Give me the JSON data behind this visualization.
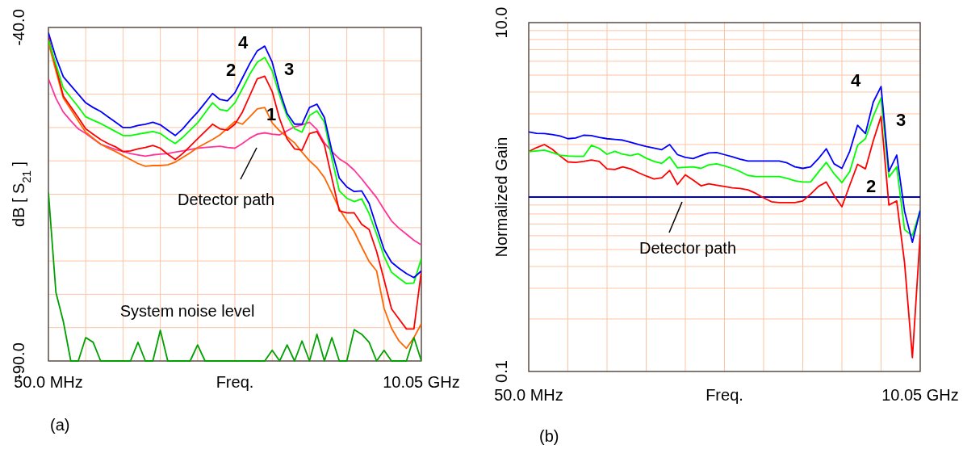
{
  "chart_data": [
    {
      "type": "line",
      "xlabel": "Freq.",
      "ylabel": "dB [ S$_{21}$ ]",
      "ylim": [
        -90,
        -40
      ],
      "grid": true,
      "categories": [
        "50.0 MHz",
        null,
        null,
        null,
        null,
        null,
        null,
        null,
        null,
        null,
        null,
        null,
        null,
        null,
        null,
        null,
        null,
        null,
        null,
        null,
        null,
        null,
        null,
        null,
        null,
        null,
        null,
        null,
        null,
        null,
        null,
        null,
        null,
        null,
        null,
        null,
        null,
        null,
        null,
        null,
        null,
        null,
        null,
        null,
        null,
        null,
        null,
        null,
        null,
        null,
        "10.05 GHz"
      ],
      "yticks": [
        {
          "value": -40,
          "label": "-40.0"
        },
        {
          "value": -45,
          "label": null
        },
        {
          "value": -50,
          "label": null
        },
        {
          "value": -55,
          "label": null
        },
        {
          "value": -60,
          "label": null
        },
        {
          "value": -65,
          "label": null
        },
        {
          "value": -70,
          "label": null
        },
        {
          "value": -75,
          "label": null
        },
        {
          "value": -80,
          "label": null
        },
        {
          "value": -85,
          "label": null
        },
        {
          "value": -90,
          "label": "-90.0"
        }
      ],
      "series": [
        {
          "color": "#ff3399",
          "values": [
            -47.7,
            -50.6,
            -52.7,
            -54.0,
            -55.2,
            -55.9,
            -56.7,
            -57.5,
            -57.9,
            -58.3,
            -58.6,
            -58.9,
            -59.1,
            -59.3,
            -59.1,
            -59.0,
            -58.9,
            -58.7,
            -58.5,
            -58.3,
            -58.1,
            -58.0,
            -57.9,
            -57.8,
            -58.0,
            -58.1,
            -57.4,
            -56.6,
            -56.0,
            -55.8,
            -56.0,
            -56.1,
            -55.5,
            -54.9,
            -54.6,
            -54.2,
            -55.3,
            -57.3,
            -58.6,
            -59.7,
            -60.4,
            -61.4,
            -62.7,
            -64.1,
            -65.5,
            -67.3,
            -69.0,
            -70.1,
            -71.0,
            -71.9,
            -72.6
          ]
        },
        {
          "color": "#ff6600",
          "values": [
            -42.3,
            -46.5,
            -50.6,
            -52.3,
            -54.0,
            -55.7,
            -56.6,
            -57.5,
            -58.1,
            -58.6,
            -59.2,
            -59.8,
            -60.4,
            -60.8,
            -60.7,
            -60.7,
            -60.6,
            -60.2,
            -59.5,
            -58.8,
            -58.0,
            -57.4,
            -56.8,
            -56.1,
            -55.1,
            -54.1,
            -54.5,
            -53.4,
            -52.2,
            -52.0,
            -54.3,
            -55.5,
            -56.4,
            -57.3,
            -58.7,
            -60.0,
            -61.0,
            -62.5,
            -64.8,
            -67.2,
            -69.0,
            -70.6,
            -72.9,
            -75.1,
            -76.5,
            -82.1,
            -85.1,
            -87.0,
            -88.1,
            -86.5,
            -84.4
          ]
        },
        {
          "color": "#ff0000",
          "values": [
            -41.5,
            -45.9,
            -50.3,
            -51.9,
            -53.5,
            -55.2,
            -56.0,
            -56.8,
            -57.4,
            -57.9,
            -58.6,
            -58.5,
            -58.2,
            -58.0,
            -57.7,
            -58.1,
            -59.0,
            -59.8,
            -58.9,
            -57.8,
            -56.7,
            -55.6,
            -54.5,
            -55.2,
            -55.4,
            -54.5,
            -52.7,
            -50.2,
            -47.7,
            -47.3,
            -49.6,
            -53.7,
            -56.7,
            -58.2,
            -58.4,
            -55.9,
            -55.6,
            -57.6,
            -62.6,
            -67.5,
            -67.8,
            -67.8,
            -69.5,
            -70.3,
            -73.6,
            -77.8,
            -82.2,
            -83.7,
            -85.2,
            -85.2,
            -76.5
          ]
        },
        {
          "color": "#00ff00",
          "values": [
            -41.9,
            -45.5,
            -49.1,
            -50.5,
            -51.9,
            -53.4,
            -53.9,
            -54.4,
            -55.0,
            -55.6,
            -56.2,
            -56.2,
            -56.0,
            -55.8,
            -55.6,
            -55.9,
            -56.7,
            -57.4,
            -56.5,
            -55.4,
            -54.3,
            -52.8,
            -51.3,
            -52.3,
            -52.5,
            -51.3,
            -49.2,
            -47.0,
            -45.2,
            -44.5,
            -46.5,
            -50.2,
            -53.3,
            -55.2,
            -55.7,
            -53.2,
            -52.5,
            -54.2,
            -59.6,
            -64.5,
            -65.6,
            -66.1,
            -65.7,
            -67.9,
            -71.0,
            -74.3,
            -76.7,
            -77.6,
            -78.4,
            -78.3,
            -74.6
          ]
        },
        {
          "color": "#0000ff",
          "values": [
            -40.8,
            -44.5,
            -47.4,
            -48.7,
            -50.0,
            -51.3,
            -52.0,
            -52.6,
            -53.4,
            -54.2,
            -55.0,
            -55.0,
            -54.7,
            -54.5,
            -54.2,
            -54.6,
            -55.4,
            -56.2,
            -55.2,
            -53.9,
            -52.7,
            -51.3,
            -49.9,
            -50.8,
            -51.0,
            -49.8,
            -47.6,
            -45.4,
            -43.5,
            -42.8,
            -45.2,
            -49.5,
            -52.9,
            -54.5,
            -54.5,
            -52.0,
            -51.5,
            -53.5,
            -58.5,
            -62.6,
            -63.9,
            -64.6,
            -64.5,
            -66.4,
            -69.9,
            -73.3,
            -75.2,
            -76.1,
            -76.9,
            -77.5,
            -76.5
          ]
        },
        {
          "color": "#00a000",
          "values": [
            -64.7,
            -79.7,
            -84.1,
            -90,
            -90,
            -86.5,
            -87.2,
            -90,
            -90,
            -90,
            -90,
            -90,
            -87.2,
            -90,
            -90,
            -85.4,
            -90,
            -90,
            -90,
            -90,
            -87.6,
            -90,
            -90,
            -90,
            -90,
            -90,
            -90,
            -90,
            -90,
            -90,
            -88.4,
            -90,
            -87.6,
            -90,
            -87.0,
            -90,
            -86.0,
            -90,
            -86.5,
            -90,
            -90,
            -85.3,
            -86.0,
            -87.2,
            -90,
            -88.4,
            -90,
            -90,
            -90,
            -86.5,
            -90
          ]
        }
      ],
      "annotations": [
        "4",
        "3",
        "2",
        "1",
        "Detector path",
        "System noise level",
        "(a)"
      ]
    },
    {
      "type": "line",
      "xlabel": "Freq.",
      "ylabel": "Normalized Gain",
      "log": "y",
      "ylim": [
        0.1,
        10
      ],
      "grid": true,
      "categories": [
        "50.0 MHz",
        null,
        null,
        null,
        null,
        null,
        null,
        null,
        null,
        null,
        null,
        null,
        null,
        null,
        null,
        null,
        null,
        null,
        null,
        null,
        null,
        null,
        null,
        null,
        null,
        null,
        null,
        null,
        null,
        null,
        null,
        null,
        null,
        null,
        null,
        null,
        null,
        null,
        null,
        null,
        null,
        null,
        null,
        null,
        null,
        null,
        null,
        null,
        null,
        null,
        "10.05 GHz"
      ],
      "yticks": [
        0.1,
        {
          "value": 0.2,
          "label": null
        },
        {
          "value": 0.3,
          "label": null
        },
        {
          "value": 0.4,
          "label": null
        },
        {
          "value": 0.5,
          "label": null
        },
        {
          "value": 0.6,
          "label": null
        },
        {
          "value": 0.7,
          "label": null
        },
        {
          "value": 0.8,
          "label": null
        },
        {
          "value": 0.9,
          "label": null
        },
        {
          "value": 2,
          "label": null
        },
        {
          "value": 3,
          "label": null
        },
        {
          "value": 4,
          "label": null
        },
        {
          "value": 5,
          "label": null
        },
        {
          "value": 6,
          "label": null
        },
        {
          "value": 7,
          "label": null
        },
        {
          "value": 8,
          "label": null
        },
        {
          "value": 9,
          "label": null
        },
        {
          "value": 10,
          "label": "10.0"
        }
      ],
      "series": [
        {
          "color": "#0000cc",
          "values": [
            1,
            1,
            1,
            1,
            1,
            1,
            1,
            1,
            1,
            1,
            1,
            1,
            1,
            1,
            1,
            1,
            1,
            1,
            1,
            1,
            1,
            1,
            1,
            1,
            1,
            1,
            1,
            1,
            1,
            1,
            1,
            1,
            1,
            1,
            1,
            1,
            1,
            1,
            1,
            1,
            1,
            1,
            1,
            1,
            1,
            1,
            1,
            1,
            1,
            1,
            1
          ]
        },
        {
          "color": "#ff0000",
          "values": [
            1.82,
            1.92,
            2.0,
            1.88,
            1.72,
            1.59,
            1.58,
            1.6,
            1.63,
            1.6,
            1.45,
            1.44,
            1.49,
            1.45,
            1.38,
            1.32,
            1.27,
            1.29,
            1.42,
            1.18,
            1.34,
            1.25,
            1.16,
            1.19,
            1.17,
            1.15,
            1.13,
            1.12,
            1.1,
            1.05,
            0.99,
            0.94,
            0.93,
            0.93,
            0.93,
            0.95,
            1.04,
            1.15,
            1.22,
            1.02,
            0.88,
            1.17,
            1.54,
            1.45,
            2.1,
            2.9,
            0.9,
            0.95,
            0.42,
            0.12,
            0.61
          ]
        },
        {
          "color": "#00ff00",
          "values": [
            1.82,
            1.84,
            1.86,
            1.8,
            1.74,
            1.72,
            1.71,
            1.71,
            1.98,
            1.9,
            1.76,
            1.83,
            1.76,
            1.73,
            1.77,
            1.67,
            1.6,
            1.56,
            1.7,
            1.47,
            1.48,
            1.49,
            1.46,
            1.53,
            1.55,
            1.51,
            1.46,
            1.4,
            1.33,
            1.31,
            1.31,
            1.31,
            1.31,
            1.28,
            1.24,
            1.22,
            1.22,
            1.39,
            1.58,
            1.36,
            1.21,
            1.4,
            1.98,
            2.16,
            2.9,
            3.7,
            1.3,
            1.49,
            0.65,
            0.6,
            0.84
          ]
        },
        {
          "color": "#0000ff",
          "values": [
            2.36,
            2.32,
            2.31,
            2.28,
            2.24,
            2.16,
            2.18,
            2.26,
            2.25,
            2.2,
            2.16,
            2.14,
            2.12,
            2.06,
            2.0,
            1.95,
            1.91,
            1.87,
            2.0,
            1.75,
            1.69,
            1.66,
            1.73,
            1.79,
            1.8,
            1.75,
            1.7,
            1.65,
            1.61,
            1.61,
            1.61,
            1.61,
            1.61,
            1.57,
            1.49,
            1.46,
            1.49,
            1.66,
            1.89,
            1.55,
            1.46,
            1.83,
            2.58,
            2.31,
            3.5,
            4.3,
            1.4,
            1.74,
            0.83,
            0.55,
            0.84
          ]
        }
      ],
      "annotations": [
        "4",
        "3",
        "2",
        "Detector path",
        "(b)"
      ]
    }
  ]
}
